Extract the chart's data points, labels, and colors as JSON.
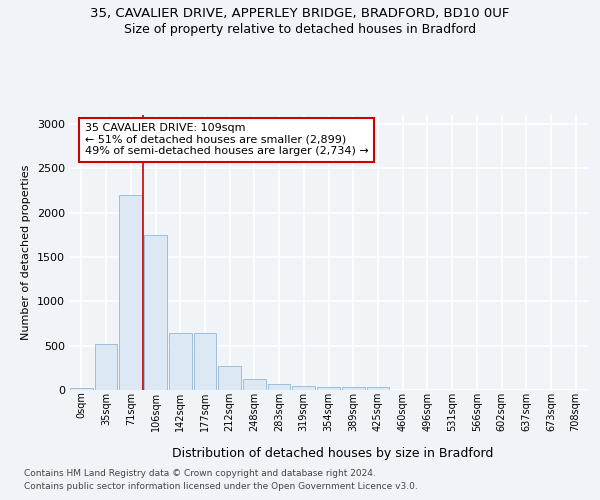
{
  "title_line1": "35, CAVALIER DRIVE, APPERLEY BRIDGE, BRADFORD, BD10 0UF",
  "title_line2": "Size of property relative to detached houses in Bradford",
  "xlabel": "Distribution of detached houses by size in Bradford",
  "ylabel": "Number of detached properties",
  "bin_labels": [
    "0sqm",
    "35sqm",
    "71sqm",
    "106sqm",
    "142sqm",
    "177sqm",
    "212sqm",
    "248sqm",
    "283sqm",
    "319sqm",
    "354sqm",
    "389sqm",
    "425sqm",
    "460sqm",
    "496sqm",
    "531sqm",
    "566sqm",
    "602sqm",
    "637sqm",
    "673sqm",
    "708sqm"
  ],
  "bar_values": [
    20,
    520,
    2200,
    1750,
    640,
    640,
    265,
    125,
    70,
    40,
    30,
    30,
    30,
    0,
    0,
    0,
    0,
    0,
    0,
    0,
    0
  ],
  "bar_color": "#dce8f4",
  "bar_edge_color": "#9dbfd8",
  "marker_bin_index": 3,
  "marker_color": "#cc0000",
  "annotation_title": "35 CAVALIER DRIVE: 109sqm",
  "annotation_line2": "← 51% of detached houses are smaller (2,899)",
  "annotation_line3": "49% of semi-detached houses are larger (2,734) →",
  "annotation_box_facecolor": "#ffffff",
  "annotation_box_edgecolor": "#cc0000",
  "ylim": [
    0,
    3100
  ],
  "yticks": [
    0,
    500,
    1000,
    1500,
    2000,
    2500,
    3000
  ],
  "background_color": "#f0f4f8",
  "grid_color": "#ffffff",
  "footer_line1": "Contains HM Land Registry data © Crown copyright and database right 2024.",
  "footer_line2": "Contains public sector information licensed under the Open Government Licence v3.0."
}
